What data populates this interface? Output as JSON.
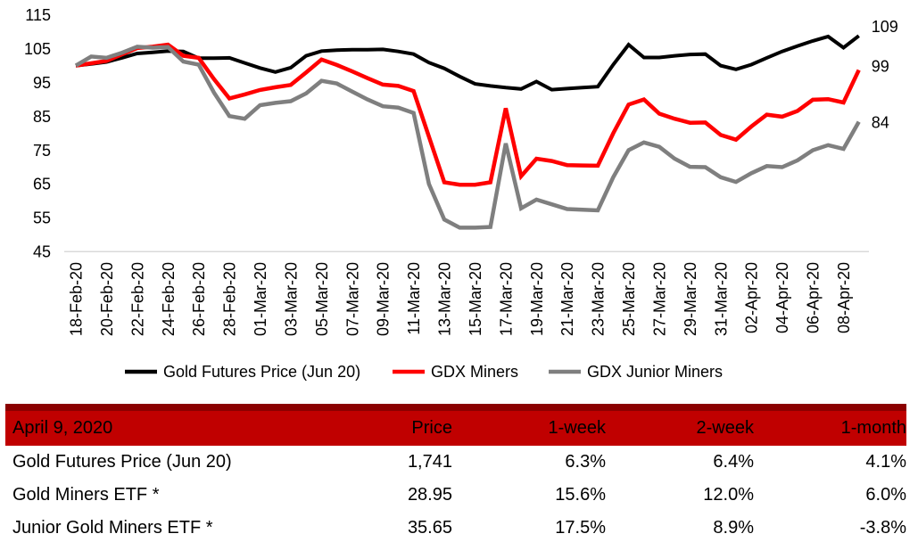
{
  "chart_data": {
    "type": "line",
    "title": "",
    "ylim": [
      45,
      115
    ],
    "y_ticks": [
      115,
      105,
      95,
      85,
      75,
      65,
      55,
      45
    ],
    "grid": "baseline-only",
    "legend_position": "bottom",
    "x_tick_labels": [
      "18-Feb-20",
      "20-Feb-20",
      "22-Feb-20",
      "24-Feb-20",
      "26-Feb-20",
      "28-Feb-20",
      "01-Mar-20",
      "03-Mar-20",
      "05-Mar-20",
      "07-Mar-20",
      "09-Mar-20",
      "11-Mar-20",
      "13-Mar-20",
      "15-Mar-20",
      "17-Mar-20",
      "19-Mar-20",
      "21-Mar-20",
      "23-Mar-20",
      "25-Mar-20",
      "27-Mar-20",
      "29-Mar-20",
      "31-Mar-20",
      "02-Apr-20",
      "04-Apr-20",
      "06-Apr-20",
      "08-Apr-20"
    ],
    "x_dates_daily": [
      "18-Feb-20",
      "19-Feb-20",
      "20-Feb-20",
      "21-Feb-20",
      "22-Feb-20",
      "23-Feb-20",
      "24-Feb-20",
      "25-Feb-20",
      "26-Feb-20",
      "27-Feb-20",
      "28-Feb-20",
      "29-Feb-20",
      "01-Mar-20",
      "02-Mar-20",
      "03-Mar-20",
      "04-Mar-20",
      "05-Mar-20",
      "06-Mar-20",
      "07-Mar-20",
      "08-Mar-20",
      "09-Mar-20",
      "10-Mar-20",
      "11-Mar-20",
      "12-Mar-20",
      "13-Mar-20",
      "14-Mar-20",
      "15-Mar-20",
      "16-Mar-20",
      "17-Mar-20",
      "18-Mar-20",
      "19-Mar-20",
      "20-Mar-20",
      "21-Mar-20",
      "22-Mar-20",
      "23-Mar-20",
      "24-Mar-20",
      "25-Mar-20",
      "26-Mar-20",
      "27-Mar-20",
      "28-Mar-20",
      "29-Mar-20",
      "30-Mar-20",
      "31-Mar-20",
      "01-Apr-20",
      "02-Apr-20",
      "03-Apr-20",
      "04-Apr-20",
      "05-Apr-20",
      "06-Apr-20",
      "07-Apr-20",
      "08-Apr-20",
      "09-Apr-20"
    ],
    "series": [
      {
        "name": "Gold Futures Price (Jun 20)",
        "color": "#000000",
        "end_label": "109",
        "values": [
          100,
          100.5,
          101.1,
          102.3,
          103.6,
          103.9,
          104.3,
          104.2,
          102.2,
          102.2,
          102.3,
          100.8,
          99.3,
          98.1,
          99.4,
          102.9,
          104.3,
          104.6,
          104.7,
          104.7,
          104.8,
          104.2,
          103.4,
          100.9,
          99.2,
          96.8,
          94.6,
          94.0,
          93.5,
          93.1,
          95.3,
          92.9,
          93.2,
          93.5,
          93.8,
          100.3,
          106.2,
          102.4,
          102.4,
          102.9,
          103.3,
          103.4,
          100.0,
          98.9,
          100.3,
          102.3,
          104.2,
          105.8,
          107.3,
          108.6,
          105.3,
          108.8
        ]
      },
      {
        "name": "GDX Miners",
        "color": "#FF0000",
        "end_label": "99",
        "values": [
          100,
          100.7,
          101.4,
          103.3,
          105.2,
          105.6,
          106.2,
          102.9,
          102.3,
          96.0,
          90.3,
          91.5,
          92.8,
          93.6,
          94.3,
          98.0,
          101.8,
          100.2,
          98.3,
          96.3,
          94.4,
          94.0,
          92.5,
          79.0,
          65.5,
          64.8,
          64.8,
          65.5,
          87.4,
          67.3,
          72.5,
          71.8,
          70.6,
          70.5,
          70.4,
          80.0,
          88.5,
          90.0,
          85.8,
          84.3,
          83.1,
          83.2,
          79.5,
          78.1,
          82.0,
          85.5,
          84.9,
          86.6,
          89.9,
          90.1,
          89.1,
          98.7
        ]
      },
      {
        "name": "GDX Junior Miners",
        "color": "#7F7F7F",
        "end_label": "84",
        "values": [
          100,
          102.7,
          102.3,
          103.8,
          105.6,
          105.3,
          105.5,
          101.2,
          100.3,
          92.0,
          85.1,
          84.3,
          88.3,
          89.0,
          89.5,
          91.8,
          95.5,
          94.7,
          92.3,
          90.0,
          88.0,
          87.6,
          86.0,
          65.0,
          54.5,
          52.1,
          52.1,
          52.3,
          77.0,
          57.8,
          60.4,
          59.0,
          57.6,
          57.4,
          57.2,
          67.0,
          75.0,
          77.3,
          76.0,
          72.5,
          70.1,
          70.0,
          67.0,
          65.6,
          68.2,
          70.3,
          70.0,
          72.0,
          75.0,
          76.5,
          75.4,
          83.4
        ]
      }
    ],
    "colors": {
      "baseline": "#D9D9D9"
    }
  },
  "table": {
    "header": {
      "date": "April 9, 2020",
      "columns": [
        "Price",
        "1-week",
        "2-week",
        "1-month"
      ]
    },
    "rows": [
      {
        "label": "Gold Futures Price (Jun 20)",
        "price": "1,741",
        "week1": "6.3%",
        "week2": "6.4%",
        "month1": "4.1%"
      },
      {
        "label": "Gold Miners ETF *",
        "price": "28.95",
        "week1": "15.6%",
        "week2": "12.0%",
        "month1": "6.0%"
      },
      {
        "label": "Junior Gold Miners ETF *",
        "price": "35.65",
        "week1": "17.5%",
        "week2": "8.9%",
        "month1": "-3.8%"
      }
    ],
    "colors": {
      "header_bg": "#C00000",
      "top_border": "#8B0000",
      "text": "#000000"
    }
  }
}
